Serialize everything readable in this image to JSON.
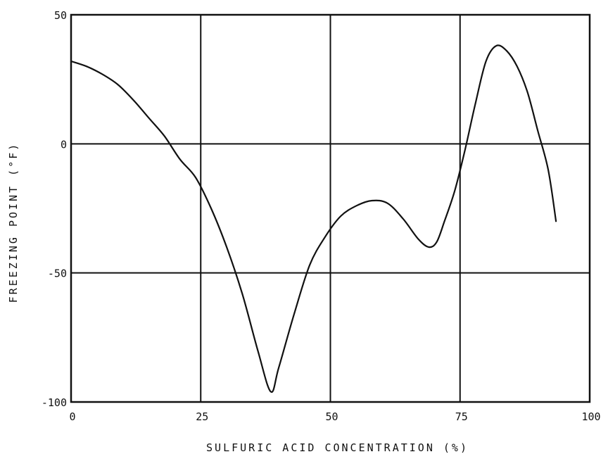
{
  "chart_data": {
    "type": "line",
    "title": "",
    "xlabel": "SULFURIC ACID CONCENTRATION (%)",
    "ylabel": "FREEZING POINT (°F)",
    "xlim": [
      0,
      100
    ],
    "ylim": [
      -100,
      50
    ],
    "grid": true,
    "x_ticks": [
      0,
      25,
      50,
      75,
      100
    ],
    "x_tick_labels": [
      "0",
      "25",
      "50",
      "75",
      "100"
    ],
    "y_ticks": [
      50,
      0,
      -50,
      -100
    ],
    "y_tick_labels": [
      "50",
      "0",
      "-50",
      "-100"
    ],
    "series": [
      {
        "x": [
          0,
          3,
          6,
          9,
          12,
          15,
          18,
          21,
          24,
          27,
          30,
          33,
          36,
          38.5,
          40,
          43,
          46,
          49,
          52,
          55,
          58,
          61,
          64,
          67,
          69,
          70.5,
          72,
          74,
          76,
          78,
          80,
          82,
          84,
          86,
          88,
          90,
          92,
          93.5
        ],
        "y": [
          32,
          30,
          27,
          23,
          17,
          10,
          3,
          -6,
          -13,
          -25,
          -40,
          -58,
          -80,
          -96,
          -87,
          -66,
          -47,
          -36,
          -28,
          -24,
          -22,
          -23,
          -29,
          -37,
          -40,
          -38,
          -30,
          -18,
          -2,
          16,
          32,
          38,
          36,
          30,
          20,
          5,
          -10,
          -30
        ]
      }
    ]
  }
}
